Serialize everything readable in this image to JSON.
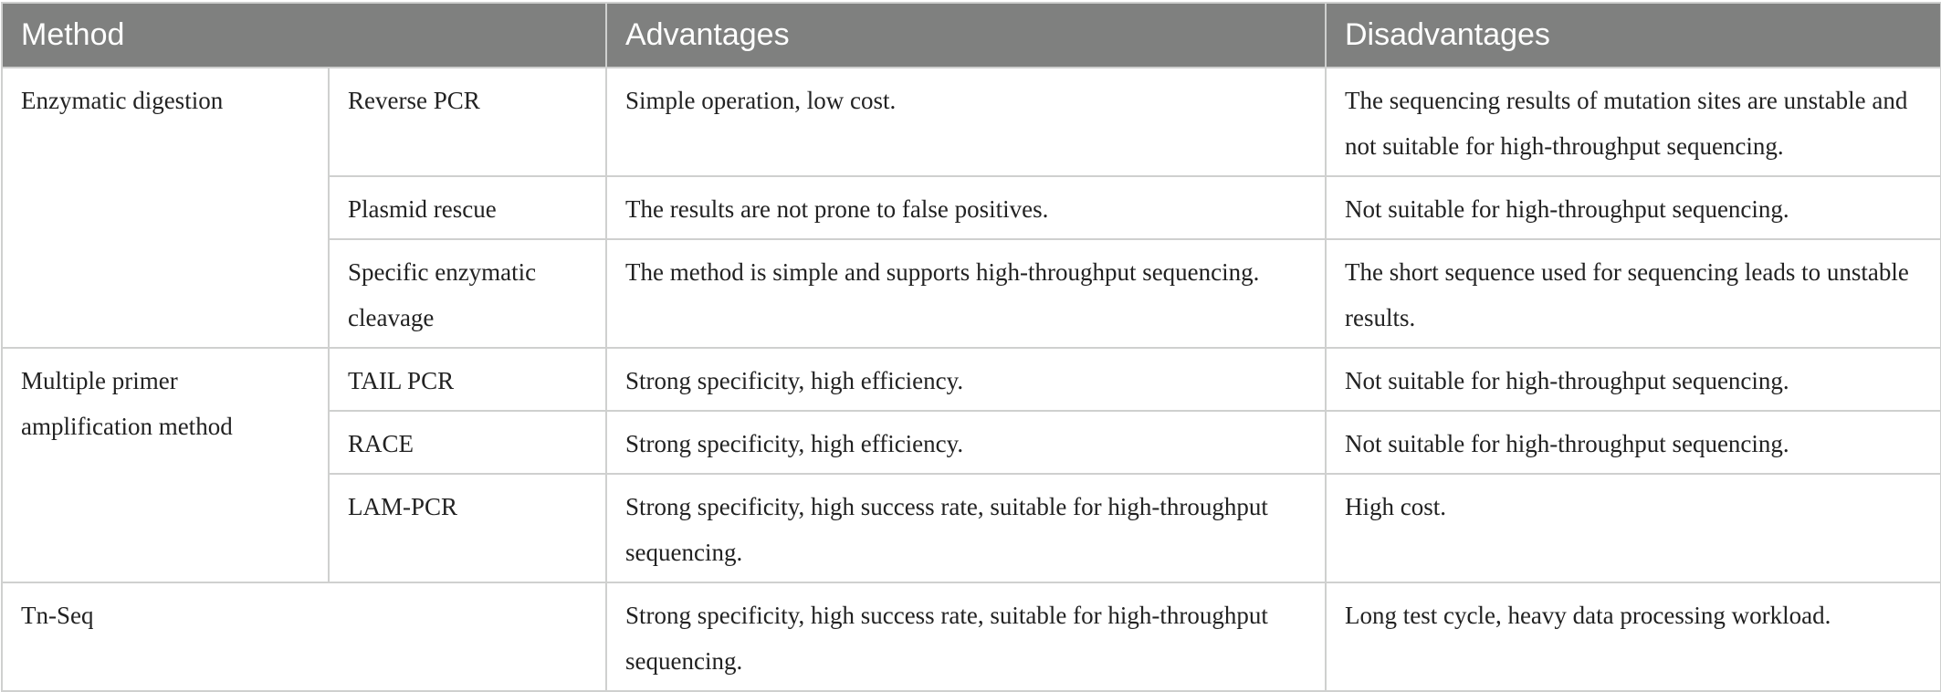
{
  "headers": {
    "method": "Method",
    "advantages": "Advantages",
    "disadvantages": "Disadvantages"
  },
  "groups": {
    "enzymatic": "Enzymatic digestion",
    "multiple_primer": "Multiple primer amplification method",
    "tnseq": "Tn-Seq"
  },
  "rows": [
    {
      "submethod": "Reverse PCR",
      "advantages": "Simple operation, low cost.",
      "disadvantages": "The sequencing results of mutation sites are unstable and not suitable for high-throughput sequencing."
    },
    {
      "submethod": "Plasmid rescue",
      "advantages": "The results are not prone to false positives.",
      "disadvantages": "Not suitable for high-throughput sequencing."
    },
    {
      "submethod": "Specific enzymatic cleavage",
      "advantages": "The method is simple and supports high-throughput sequencing.",
      "disadvantages": "The short sequence used for sequencing leads to unstable results."
    },
    {
      "submethod": "TAIL PCR",
      "advantages": "Strong specificity, high efficiency.",
      "disadvantages": "Not suitable for high-throughput sequencing."
    },
    {
      "submethod": "RACE",
      "advantages": "Strong specificity, high efficiency.",
      "disadvantages": "Not suitable for high-throughput sequencing."
    },
    {
      "submethod": "LAM-PCR",
      "advantages": "Strong specificity, high success rate, suitable for high-throughput sequencing.",
      "disadvantages": "High cost."
    },
    {
      "advantages": "Strong specificity, high success rate, suitable for high-throughput sequencing.",
      "disadvantages": "Long test cycle, heavy data processing workload."
    }
  ]
}
